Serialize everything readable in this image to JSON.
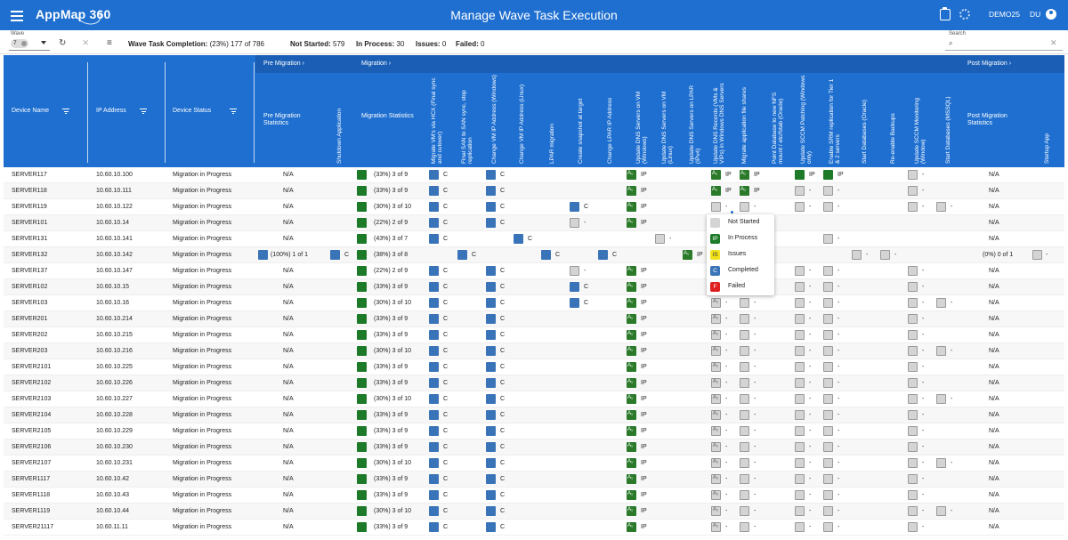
{
  "app": {
    "brand": "AppMap 360",
    "title": "Manage Wave Task Execution",
    "user": "DEMO25",
    "initials": "DU"
  },
  "toolbar": {
    "wave_label": "Wave",
    "wave_value": "7",
    "completion_label": "Wave Task Completion:",
    "completion_value": "(23%) 177 of 786",
    "not_started_label": "Not Started:",
    "not_started_value": "579",
    "in_process_label": "In Process:",
    "in_process_value": "30",
    "issues_label": "Issues:",
    "issues_value": "0",
    "failed_label": "Failed:",
    "failed_value": "0",
    "search_label": "Search",
    "search_icon": "search-icon"
  },
  "header": {
    "groups": [
      "Pre Migration",
      "Migration",
      "Post Migration"
    ],
    "device_name": "Device Name",
    "ip_address": "IP Address",
    "device_status": "Device Status",
    "pre_stats": "Pre Migration Statistics",
    "shutdown_app": "Shutdown Application",
    "mig_stats": "Migration Statistics",
    "tasks": [
      "Migrate VM's via HCX (Final sync and cutover)",
      "Final SAN to SAN sync, stop replication",
      "Change VM IP Address (Windows)",
      "Change VM IP Address (Linux)",
      "LPAR migration",
      "Create snapshot at target",
      "Change LPAR IP Address",
      "Update DNS Servers on VM (Windows)",
      "Update DNS Servers on VM (Linux)",
      "Update DNS Servers on LPAR (IPv4)",
      "Update DNS Records (VMs & VIPs) in Windows DNS Servers",
      "Migrate application file shares",
      "Point Database to new NFS mount / etc/fstab (Oracle)",
      "Update SCCM Patching (Windows only)",
      "Enable SRM replication for Tier 1 & 2 servers",
      "Start Databases (Oracle)",
      "Re-enable Backups",
      "Update SCCM Monitoring (Window)",
      "Start Databases (MSSQL)"
    ],
    "post_stats": "Post Migration Statistics",
    "startup_app": "Startup App"
  },
  "rows": [
    {
      "name": "SERVER117",
      "ip": "10.60.10.100",
      "status": "Migration in Progress",
      "pre": "N/A",
      "mig": "(33%) 3 of 9",
      "post": "N/A"
    },
    {
      "name": "SERVER118",
      "ip": "10.60.10.111",
      "status": "Migration in Progress",
      "pre": "N/A",
      "mig": "(33%) 3 of 9",
      "post": "N/A"
    },
    {
      "name": "SERVER119",
      "ip": "10.60.10.122",
      "status": "Migration in Progress",
      "pre": "N/A",
      "mig": "(30%) 3 of 10",
      "post": "N/A"
    },
    {
      "name": "SERVER101",
      "ip": "10.60.10.14",
      "status": "Migration in Progress",
      "pre": "N/A",
      "mig": "(22%) 2 of 9",
      "post": "N/A"
    },
    {
      "name": "SERVER131",
      "ip": "10.60.10.141",
      "status": "Migration in Progress",
      "pre": "N/A",
      "mig": "(43%) 3 of 7",
      "post": "N/A"
    },
    {
      "name": "SERVER132",
      "ip": "10.60.10.142",
      "status": "Migration in Progress",
      "pre": "(100%) 1 of 1",
      "mig": "(38%) 3 of 8",
      "post": "(0%) 0 of 1"
    },
    {
      "name": "SERVER137",
      "ip": "10.60.10.147",
      "status": "Migration in Progress",
      "pre": "N/A",
      "mig": "(22%) 2 of 9",
      "post": "N/A"
    },
    {
      "name": "SERVER102",
      "ip": "10.60.10.15",
      "status": "Migration in Progress",
      "pre": "N/A",
      "mig": "(33%) 3 of 9",
      "post": "N/A"
    },
    {
      "name": "SERVER103",
      "ip": "10.60.10.16",
      "status": "Migration in Progress",
      "pre": "N/A",
      "mig": "(30%) 3 of 10",
      "post": "N/A"
    },
    {
      "name": "SERVER201",
      "ip": "10.60.10.214",
      "status": "Migration in Progress",
      "pre": "N/A",
      "mig": "(33%) 3 of 9",
      "post": "N/A"
    },
    {
      "name": "SERVER202",
      "ip": "10.60.10.215",
      "status": "Migration in Progress",
      "pre": "N/A",
      "mig": "(33%) 3 of 9",
      "post": "N/A"
    },
    {
      "name": "SERVER203",
      "ip": "10.60.10.216",
      "status": "Migration in Progress",
      "pre": "N/A",
      "mig": "(30%) 3 of 10",
      "post": "N/A"
    },
    {
      "name": "SERVER2101",
      "ip": "10.60.10.225",
      "status": "Migration in Progress",
      "pre": "N/A",
      "mig": "(33%) 3 of 9",
      "post": "N/A"
    },
    {
      "name": "SERVER2102",
      "ip": "10.60.10.226",
      "status": "Migration in Progress",
      "pre": "N/A",
      "mig": "(33%) 3 of 9",
      "post": "N/A"
    },
    {
      "name": "SERVER2103",
      "ip": "10.60.10.227",
      "status": "Migration in Progress",
      "pre": "N/A",
      "mig": "(30%) 3 of 10",
      "post": "N/A"
    },
    {
      "name": "SERVER2104",
      "ip": "10.60.10.228",
      "status": "Migration in Progress",
      "pre": "N/A",
      "mig": "(33%) 3 of 9",
      "post": "N/A"
    },
    {
      "name": "SERVER2105",
      "ip": "10.60.10.229",
      "status": "Migration in Progress",
      "pre": "N/A",
      "mig": "(33%) 3 of 9",
      "post": "N/A"
    },
    {
      "name": "SERVER2106",
      "ip": "10.60.10.230",
      "status": "Migration in Progress",
      "pre": "N/A",
      "mig": "(33%) 3 of 9",
      "post": "N/A"
    },
    {
      "name": "SERVER2107",
      "ip": "10.60.10.231",
      "status": "Migration in Progress",
      "pre": "N/A",
      "mig": "(30%) 3 of 10",
      "post": "N/A"
    },
    {
      "name": "SERVER1117",
      "ip": "10.60.10.42",
      "status": "Migration in Progress",
      "pre": "N/A",
      "mig": "(33%) 3 of 9",
      "post": "N/A"
    },
    {
      "name": "SERVER1118",
      "ip": "10.60.10.43",
      "status": "Migration in Progress",
      "pre": "N/A",
      "mig": "(33%) 3 of 9",
      "post": "N/A"
    },
    {
      "name": "SERVER1119",
      "ip": "10.60.10.44",
      "status": "Migration in Progress",
      "pre": "N/A",
      "mig": "(30%) 3 of 10",
      "post": "N/A"
    },
    {
      "name": "SERVER21117",
      "ip": "10.60.11.11",
      "status": "Migration in Progress",
      "pre": "N/A",
      "mig": "(33%) 3 of 9",
      "post": "N/A"
    }
  ],
  "popup": {
    "items": [
      {
        "badge": "",
        "label": "Not Started"
      },
      {
        "badge": "IP",
        "label": "In Process"
      },
      {
        "badge": "IS",
        "label": "Issues"
      },
      {
        "badge": "C",
        "label": "Completed"
      },
      {
        "badge": "F",
        "label": "Failed"
      }
    ]
  },
  "cell_labels": {
    "c": "C",
    "ip": "IP",
    "ns": "-"
  },
  "colors": {
    "header": "#1e6fd0",
    "completed": "#3a74b8",
    "in_process": "#1c7a28",
    "issues": "#f2e21a",
    "failed": "#e02020",
    "not_started": "#d4d4d4"
  }
}
